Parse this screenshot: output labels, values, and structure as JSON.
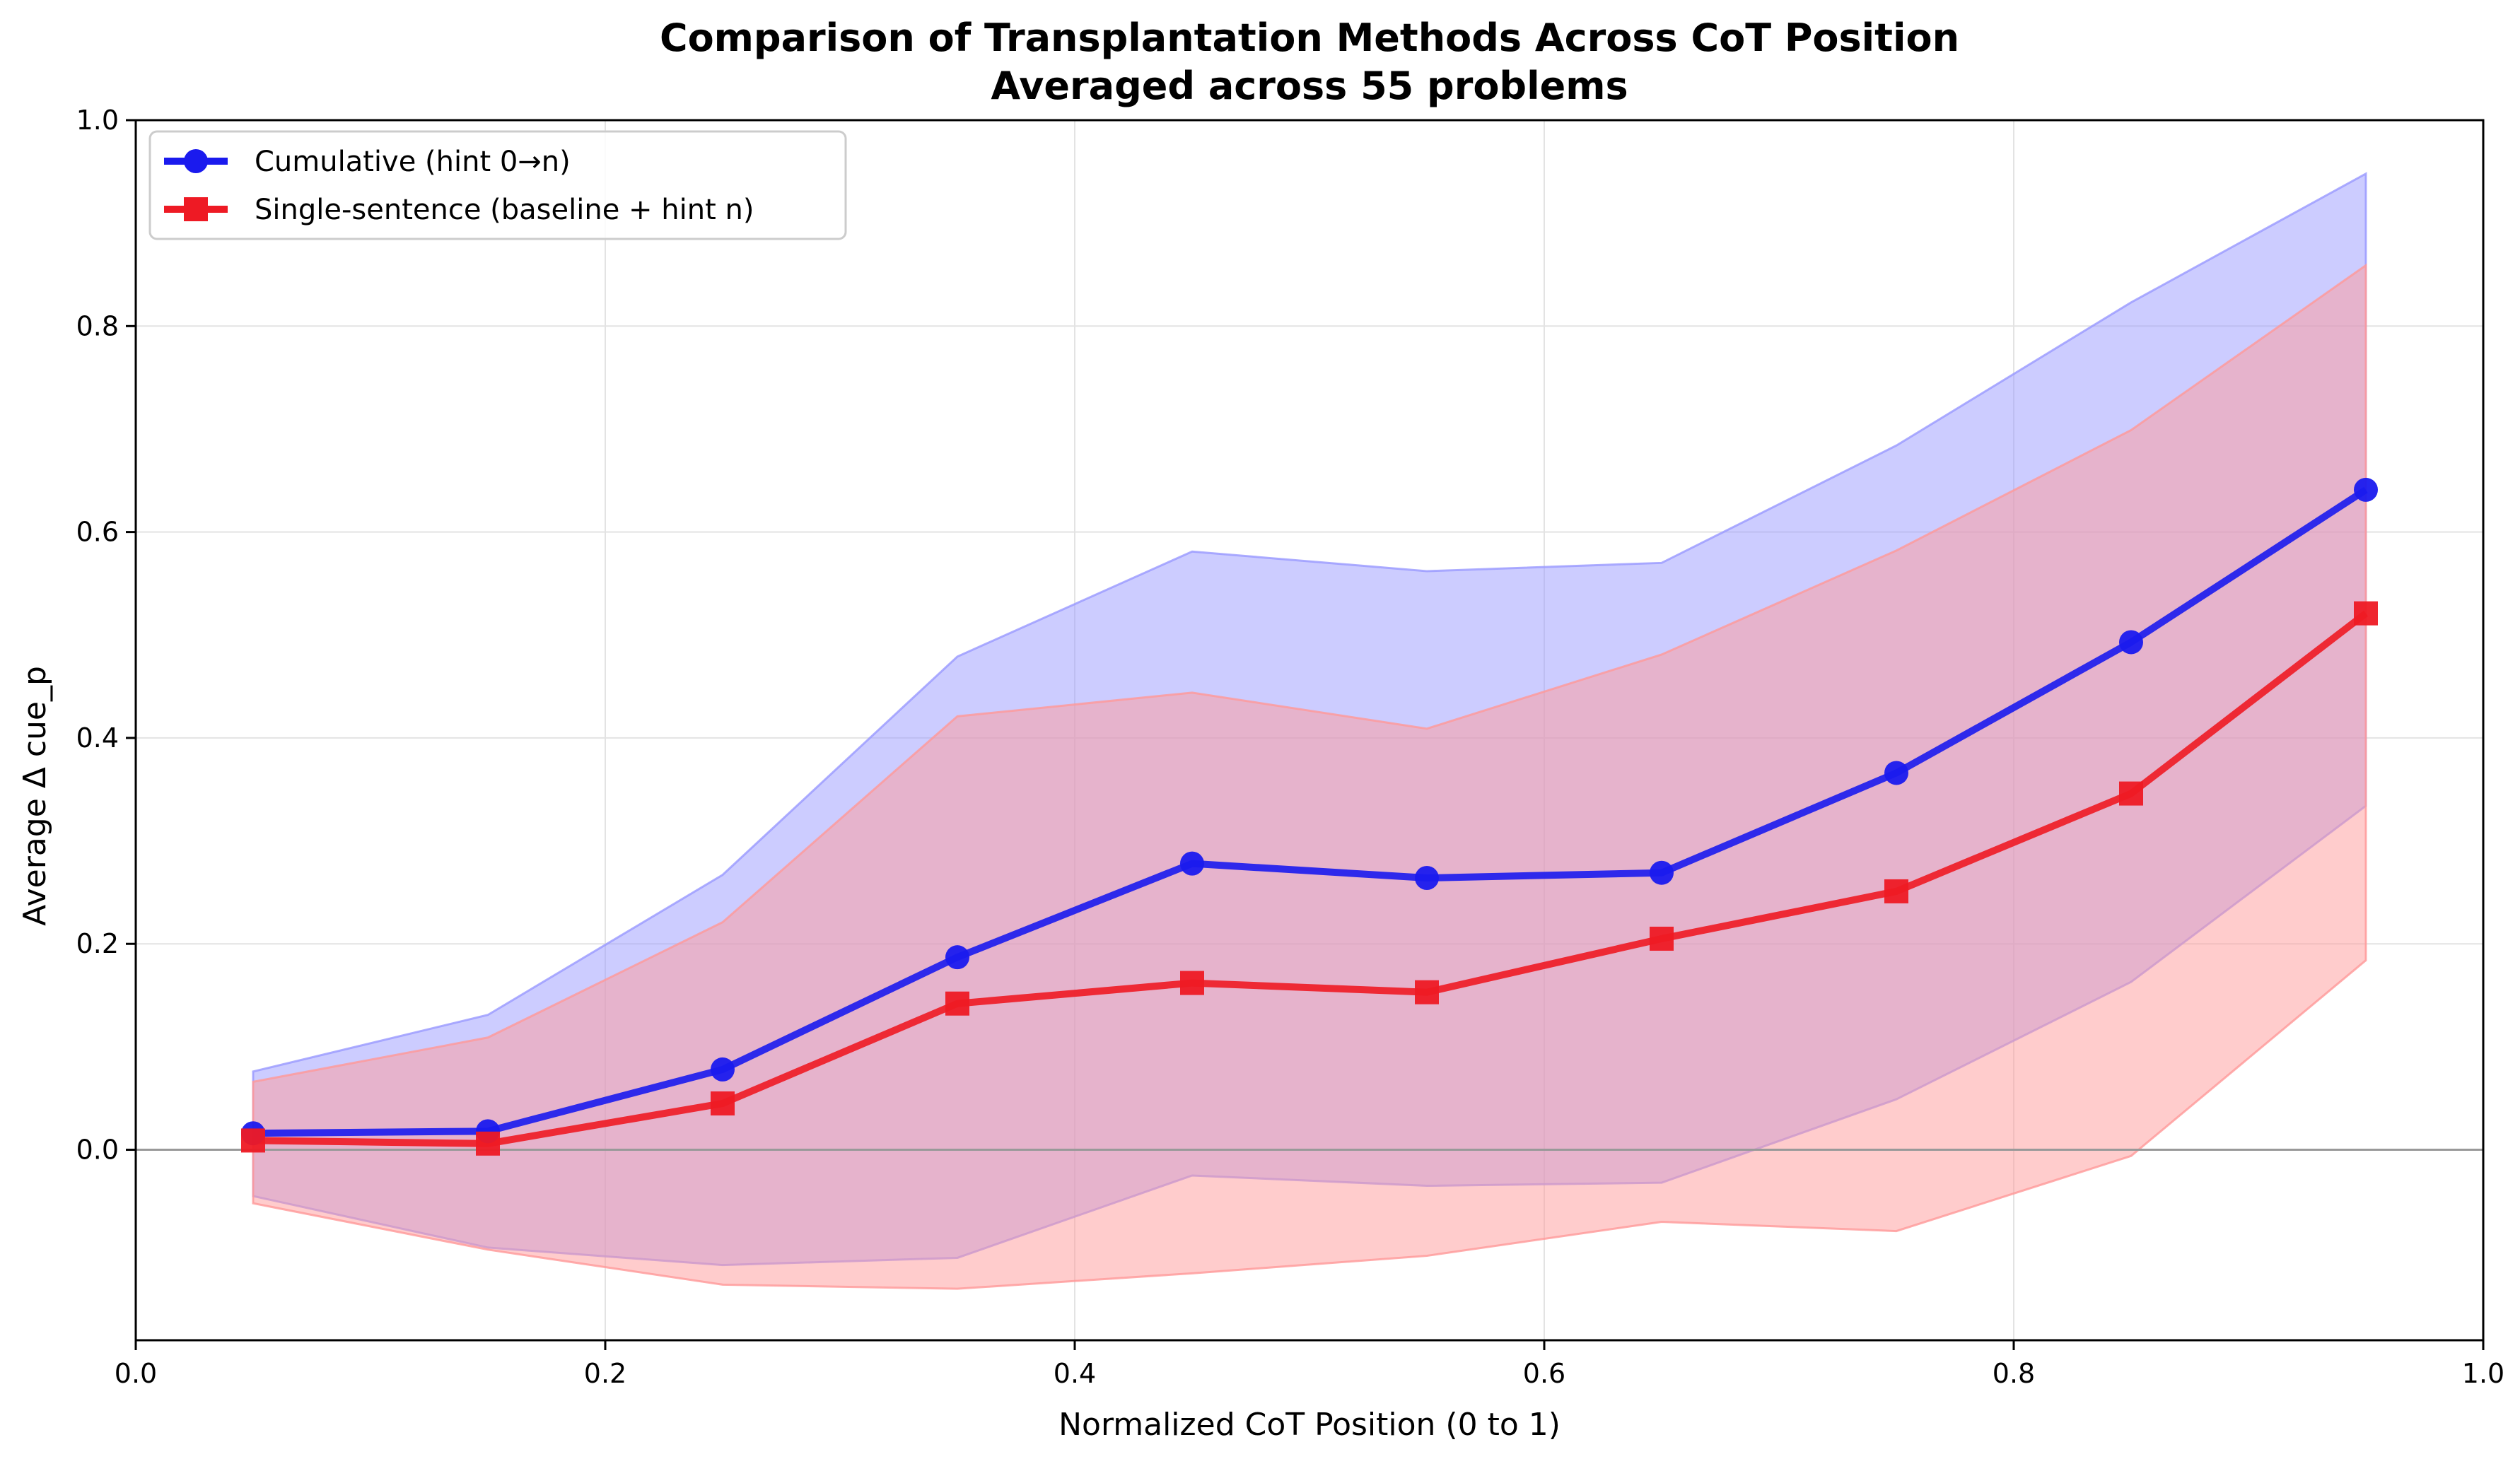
{
  "chart_data": {
    "type": "line",
    "title": "Comparison of Transplantation Methods Across CoT Position",
    "subtitle": "Averaged across 55 problems",
    "xlabel": "Normalized CoT Position (0 to 1)",
    "ylabel": "Average Δ cue_p",
    "xlim": [
      0.0,
      1.0
    ],
    "ylim": [
      -0.185,
      1.0
    ],
    "xticks": [
      "0.0",
      "0.2",
      "0.4",
      "0.6",
      "0.8",
      "1.0"
    ],
    "yticks": [
      "0.0",
      "0.2",
      "0.4",
      "0.6",
      "0.8",
      "1.0"
    ],
    "grid": true,
    "legend_position": "top-left",
    "reference_line_y": 0.0,
    "x": [
      0.05,
      0.15,
      0.25,
      0.35,
      0.45,
      0.55,
      0.65,
      0.75,
      0.85,
      0.95
    ],
    "series": [
      {
        "name": "Cumulative (hint 0→n)",
        "color": "#1a1aee",
        "band_color": "#9999ff",
        "marker": "circle",
        "values": [
          0.016,
          0.018,
          0.078,
          0.187,
          0.278,
          0.264,
          0.269,
          0.366,
          0.493,
          0.641
        ],
        "upper": [
          0.076,
          0.131,
          0.267,
          0.479,
          0.581,
          0.562,
          0.57,
          0.684,
          0.823,
          0.948
        ],
        "lower": [
          -0.045,
          -0.095,
          -0.112,
          -0.105,
          -0.025,
          -0.035,
          -0.032,
          0.049,
          0.163,
          0.334
        ]
      },
      {
        "name": "Single-sentence (baseline + hint n)",
        "color": "#ee1a24",
        "band_color": "#ff9999",
        "marker": "square",
        "values": [
          0.009,
          0.006,
          0.045,
          0.142,
          0.162,
          0.153,
          0.205,
          0.251,
          0.346,
          0.521
        ],
        "upper": [
          0.066,
          0.109,
          0.221,
          0.421,
          0.444,
          0.409,
          0.481,
          0.582,
          0.699,
          0.859
        ],
        "lower": [
          -0.052,
          -0.097,
          -0.131,
          -0.135,
          -0.12,
          -0.103,
          -0.07,
          -0.079,
          -0.006,
          0.184
        ]
      }
    ]
  }
}
